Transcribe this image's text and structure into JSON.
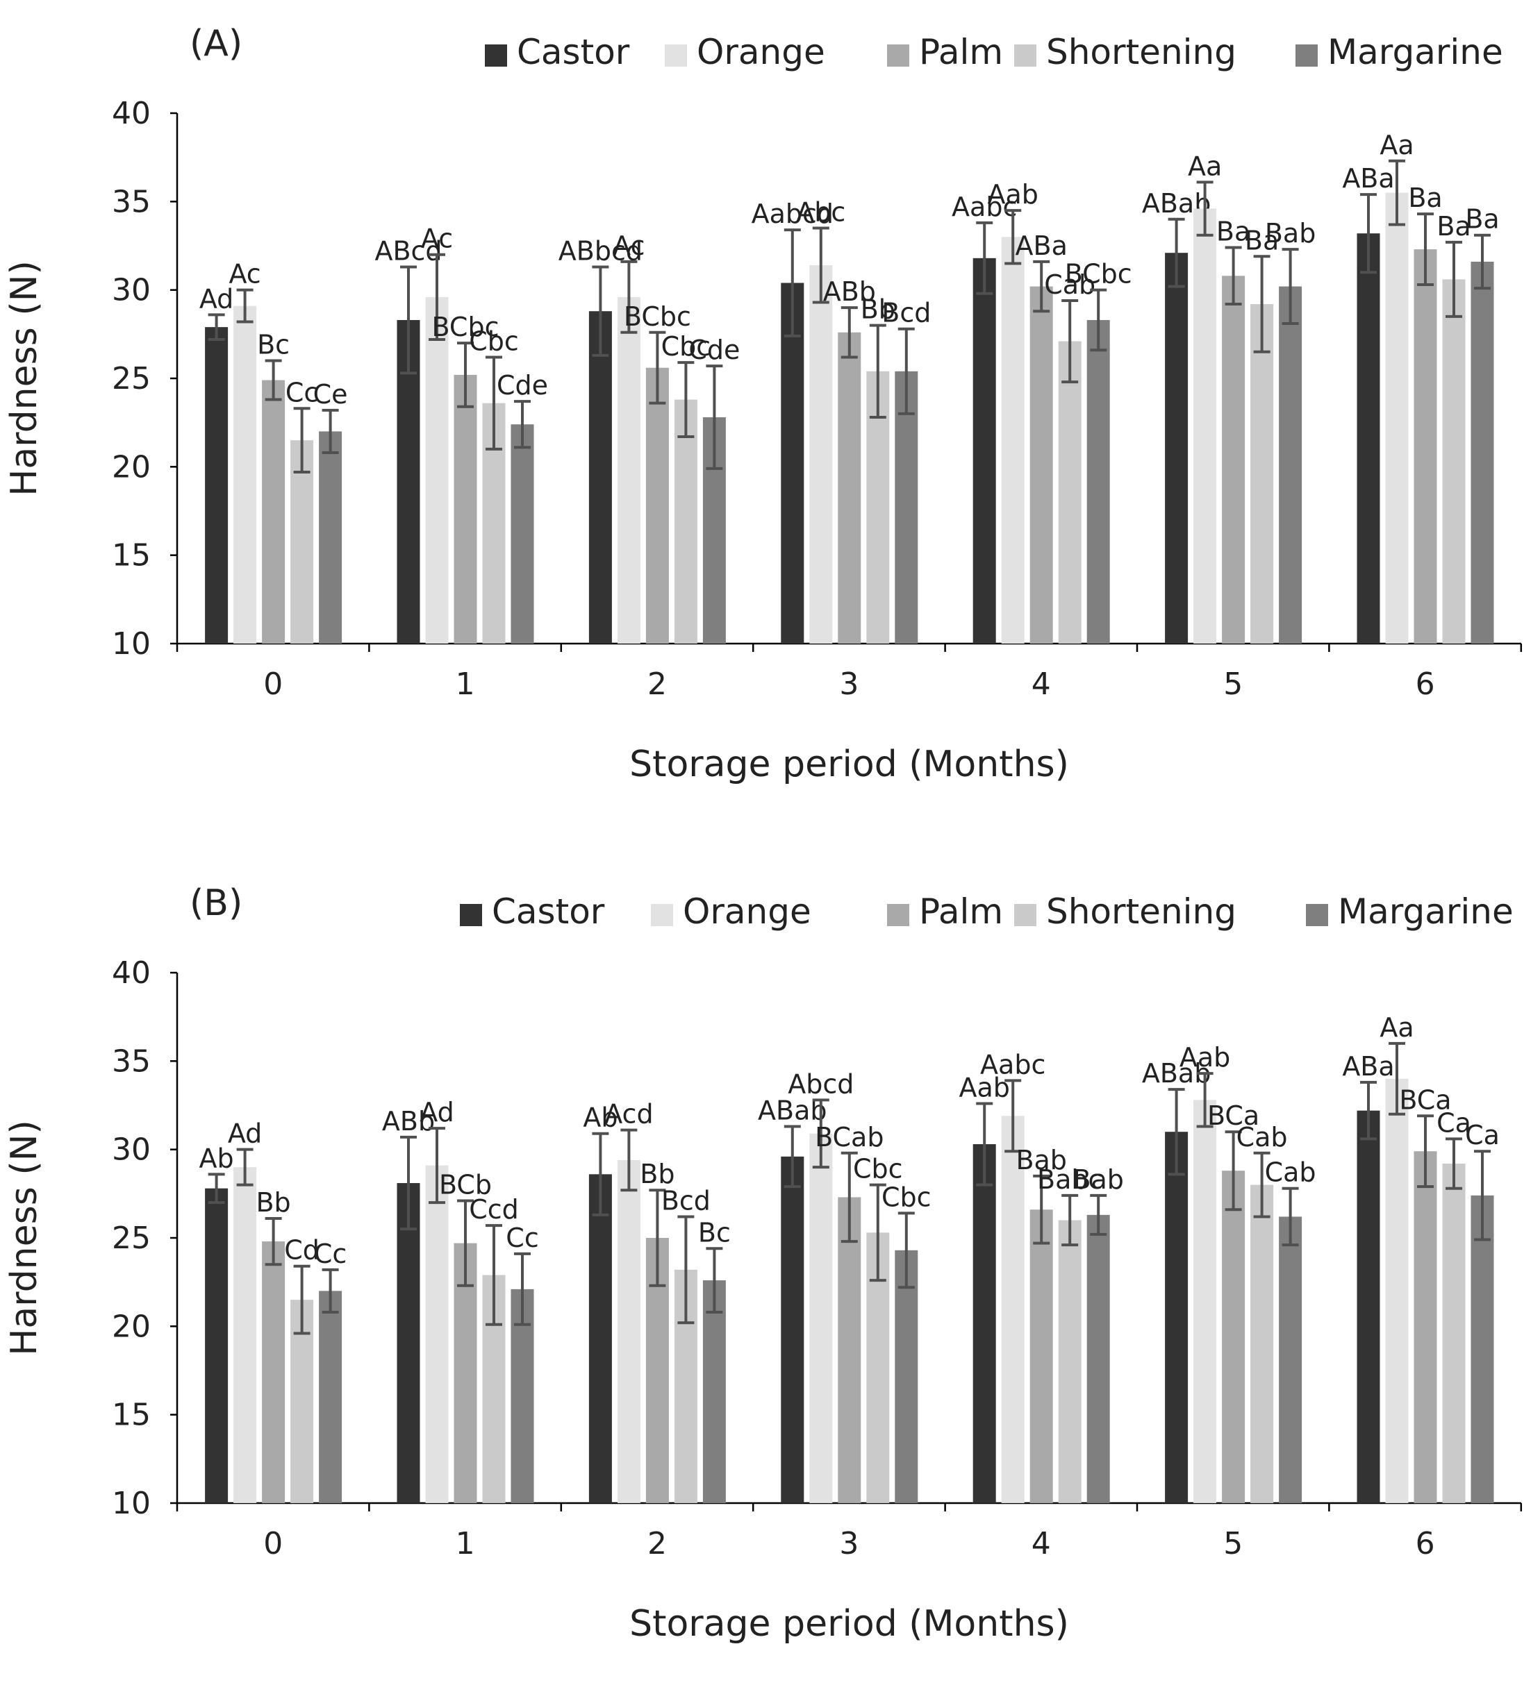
{
  "colors": {
    "Castor": "#333333",
    "Orange": "#e2e2e2",
    "Palm": "#a9a9a9",
    "Shortening": "#cacaca",
    "Margarine": "#7f7f7f",
    "error_bar": "#505050"
  },
  "chart_data": [
    {
      "type": "bar",
      "panel_label": "(A)",
      "xlabel": "Storage period (Months)",
      "ylabel": "Hardness (N)",
      "ylim": [
        10,
        40
      ],
      "yticks": [
        10,
        15,
        20,
        25,
        30,
        35,
        40
      ],
      "categories": [
        "0",
        "1",
        "2",
        "3",
        "4",
        "5",
        "6"
      ],
      "legend": [
        "Castor",
        "Orange",
        "Palm",
        "Shortening",
        "Margarine"
      ],
      "legend_position": "top-right",
      "grid": false,
      "series": [
        {
          "name": "Castor",
          "values": [
            27.9,
            28.3,
            28.8,
            30.4,
            31.8,
            32.1,
            33.2
          ],
          "errors": [
            0.7,
            3.0,
            2.5,
            3.0,
            2.0,
            1.9,
            2.2
          ],
          "labels": [
            "Ad",
            "ABcd",
            "ABbcd",
            "Aabcd",
            "Aabc",
            "ABab",
            "ABa"
          ]
        },
        {
          "name": "Orange",
          "values": [
            29.1,
            29.6,
            29.6,
            31.4,
            33.0,
            34.6,
            35.5
          ],
          "errors": [
            0.9,
            2.4,
            2.0,
            2.1,
            1.5,
            1.5,
            1.8
          ],
          "labels": [
            "Ac",
            "Ac",
            "Ac",
            "Abc",
            "Aab",
            "Aa",
            "Aa"
          ]
        },
        {
          "name": "Palm",
          "values": [
            24.9,
            25.2,
            25.6,
            27.6,
            30.2,
            30.8,
            32.3
          ],
          "errors": [
            1.1,
            1.8,
            2.0,
            1.4,
            1.4,
            1.6,
            2.0
          ],
          "labels": [
            "Bc",
            "BCbc",
            "BCbc",
            "ABb",
            "ABa",
            "Ba",
            "Ba"
          ]
        },
        {
          "name": "Shortening",
          "values": [
            21.5,
            23.6,
            23.8,
            25.4,
            27.1,
            29.2,
            30.6
          ],
          "errors": [
            1.8,
            2.6,
            2.1,
            2.6,
            2.3,
            2.7,
            2.1
          ],
          "labels": [
            "Cc",
            "Cbc",
            "Cbc",
            "Bb",
            "Cab",
            "Ba",
            "Ba"
          ]
        },
        {
          "name": "Margarine",
          "values": [
            22.0,
            22.4,
            22.8,
            25.4,
            28.3,
            30.2,
            31.6
          ],
          "errors": [
            1.2,
            1.3,
            2.9,
            2.4,
            1.7,
            2.1,
            1.5
          ],
          "labels": [
            "Ce",
            "Cde",
            "Cde",
            "Bcd",
            "BCbc",
            "Bab",
            "Ba"
          ]
        }
      ]
    },
    {
      "type": "bar",
      "panel_label": "(B)",
      "xlabel": "Storage period (Months)",
      "ylabel": "Hardness (N)",
      "ylim": [
        10,
        40
      ],
      "yticks": [
        10,
        15,
        20,
        25,
        30,
        35,
        40
      ],
      "categories": [
        "0",
        "1",
        "2",
        "3",
        "4",
        "5",
        "6"
      ],
      "legend": [
        "Castor",
        "Orange",
        "Palm",
        "Shortening",
        "Margarine"
      ],
      "legend_position": "top-right",
      "grid": false,
      "series": [
        {
          "name": "Castor",
          "values": [
            27.8,
            28.1,
            28.6,
            29.6,
            30.3,
            31.0,
            32.2
          ],
          "errors": [
            0.8,
            2.6,
            2.3,
            1.7,
            2.3,
            2.4,
            1.6
          ],
          "labels": [
            "Ab",
            "ABb",
            "Ab",
            "ABab",
            "Aab",
            "ABab",
            "ABa"
          ]
        },
        {
          "name": "Orange",
          "values": [
            29.0,
            29.1,
            29.4,
            30.9,
            31.9,
            32.8,
            34.0
          ],
          "errors": [
            1.0,
            2.1,
            1.7,
            1.9,
            2.0,
            1.5,
            2.0
          ],
          "labels": [
            "Ad",
            "Ad",
            "Acd",
            "Abcd",
            "Aabc",
            "Aab",
            "Aa"
          ]
        },
        {
          "name": "Palm",
          "values": [
            24.8,
            24.7,
            25.0,
            27.3,
            26.6,
            28.8,
            29.9
          ],
          "errors": [
            1.3,
            2.4,
            2.7,
            2.5,
            1.9,
            2.2,
            2.0
          ],
          "labels": [
            "Bb",
            "BCb",
            "Bb",
            "BCab",
            "Bab",
            "BCa",
            "BCa"
          ]
        },
        {
          "name": "Shortening",
          "values": [
            21.5,
            22.9,
            23.2,
            25.3,
            26.0,
            28.0,
            29.2
          ],
          "errors": [
            1.9,
            2.8,
            3.0,
            2.7,
            1.4,
            1.8,
            1.4
          ],
          "labels": [
            "Cd",
            "Ccd",
            "Bcd",
            "Cbc",
            "Babc",
            "Cab",
            "Ca"
          ]
        },
        {
          "name": "Margarine",
          "values": [
            22.0,
            22.1,
            22.6,
            24.3,
            26.3,
            26.2,
            27.4
          ],
          "errors": [
            1.2,
            2.0,
            1.8,
            2.1,
            1.1,
            1.6,
            2.5
          ],
          "labels": [
            "Cc",
            "Cc",
            "Bc",
            "Cbc",
            "Bab",
            "Cab",
            "Ca"
          ]
        }
      ]
    }
  ]
}
